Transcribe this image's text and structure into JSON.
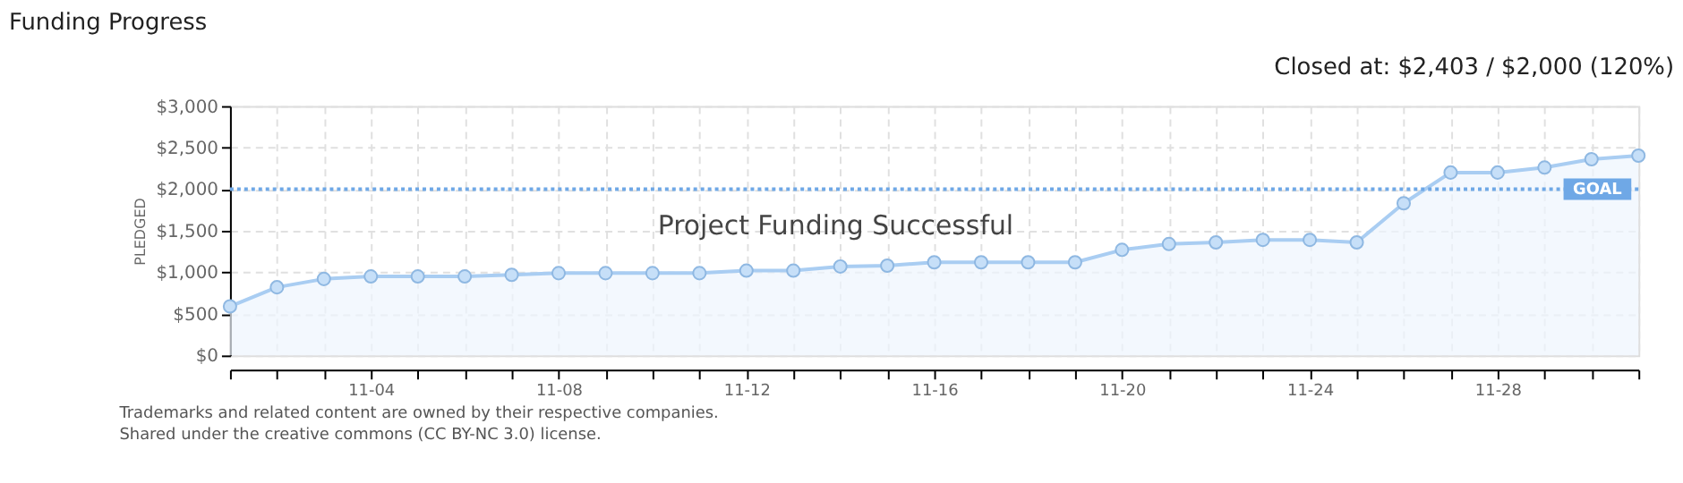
{
  "chart_data": {
    "type": "area",
    "title": "Funding Progress",
    "ylabel": "PLEDGED",
    "categories": [
      null,
      null,
      null,
      "11-04",
      null,
      null,
      null,
      "11-08",
      null,
      null,
      null,
      "11-12",
      null,
      null,
      null,
      "11-16",
      null,
      null,
      null,
      "11-20",
      null,
      null,
      null,
      "11-24",
      null,
      null,
      null,
      "11-28",
      null,
      null,
      null
    ],
    "series": [
      {
        "color": "#a9cdf2",
        "values": [
          590,
          820,
          920,
          950,
          950,
          950,
          970,
          990,
          990,
          990,
          990,
          1020,
          1020,
          1070,
          1080,
          1120,
          1120,
          1120,
          1120,
          1270,
          1340,
          1360,
          1390,
          1390,
          1360,
          1830,
          2200,
          2200,
          2260,
          2360,
          2403
        ]
      }
    ],
    "ylim": [
      0,
      3000
    ],
    "yticks": [
      {
        "value": 0,
        "label": "$0"
      },
      {
        "value": 500,
        "label": "$500"
      },
      {
        "value": 1000,
        "label": "$1,000"
      },
      {
        "value": 1500,
        "label": "$1,500"
      },
      {
        "value": 2000,
        "label": "$2,000"
      },
      {
        "value": 2500,
        "label": "$2,500"
      },
      {
        "value": 3000,
        "label": "$3,000"
      }
    ],
    "ref_lines": [
      {
        "axis": "y",
        "value": 2000,
        "label": "GOAL",
        "color": "#6fa8e6",
        "line_style": "dotted"
      }
    ],
    "annotations": [
      "Closed at: $2,403 / $2,000 (120%)",
      "Project Funding Successful",
      "Trademarks and related content are owned by their respective companies.",
      "Shared under the creative commons (CC BY-NC 3.0) license."
    ],
    "grid": true,
    "marker": "circle",
    "legend": false
  }
}
